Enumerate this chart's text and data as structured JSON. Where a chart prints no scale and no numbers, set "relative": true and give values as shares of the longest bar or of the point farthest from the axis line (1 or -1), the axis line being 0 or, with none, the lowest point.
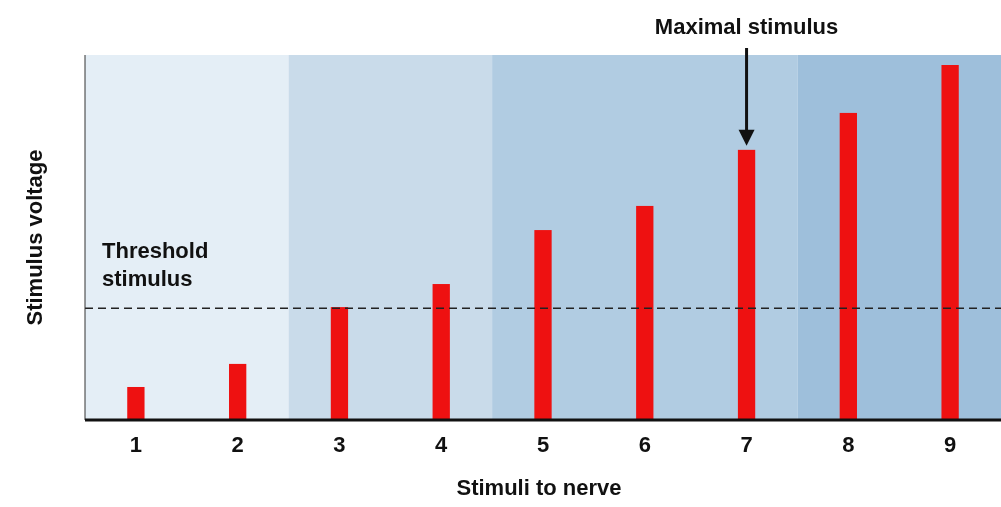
{
  "chart_data": {
    "type": "bar",
    "relative": true,
    "xlabel": "Stimuli to nerve",
    "ylabel": "Stimulus voltage",
    "categories": [
      "1",
      "2",
      "3",
      "4",
      "5",
      "6",
      "7",
      "8",
      "9"
    ],
    "values": [
      0.093,
      0.158,
      0.318,
      0.383,
      0.535,
      0.603,
      0.761,
      0.865,
      1
    ],
    "color": "#ee1111",
    "ref_lines": [
      {
        "axis": "y",
        "value": 0.315,
        "label": "Threshold stimulus",
        "line_style": "dashed",
        "color": "#222222"
      }
    ],
    "bands": [
      {
        "axis": "x",
        "from": "1",
        "to": "2",
        "color": "#e4eef6"
      },
      {
        "axis": "x",
        "from": "3",
        "to": "4",
        "color": "#c9dbea"
      },
      {
        "axis": "x",
        "from": "5",
        "to": "7",
        "color": "#b1cce2"
      },
      {
        "axis": "x",
        "from": "8",
        "to": "9",
        "color": "#9ebfdb"
      }
    ],
    "annotations": [
      {
        "text": "Maximal stimulus",
        "x": "7"
      }
    ]
  }
}
